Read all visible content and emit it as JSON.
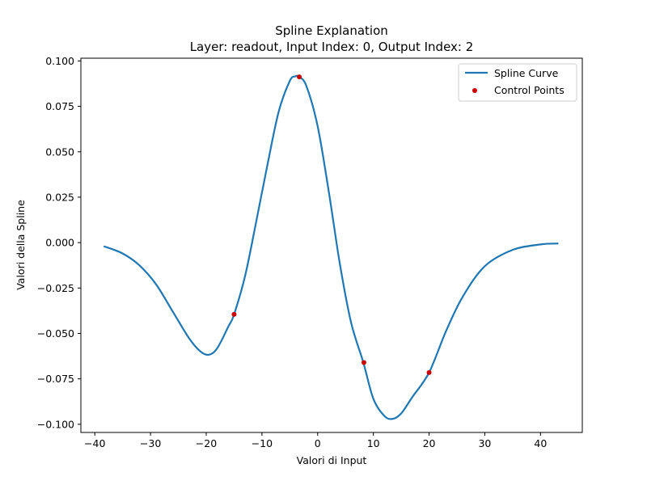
{
  "chart_data": {
    "type": "line",
    "title": "Spline Explanation",
    "subtitle": "Layer: readout, Input Index: 0, Output Index: 2",
    "xlabel": "Valori di Input",
    "ylabel": "Valori della Spline",
    "xlim": [
      -42.5,
      47.5
    ],
    "ylim": [
      -0.1045,
      0.1015
    ],
    "xticks": [
      -40,
      -30,
      -20,
      -10,
      0,
      10,
      20,
      30,
      40
    ],
    "xtick_labels": [
      "−40",
      "−30",
      "−20",
      "−10",
      "0",
      "10",
      "20",
      "30",
      "40"
    ],
    "yticks": [
      -0.1,
      -0.075,
      -0.05,
      -0.025,
      0.0,
      0.025,
      0.05,
      0.075,
      0.1
    ],
    "ytick_labels": [
      "−0.100",
      "−0.075",
      "−0.050",
      "−0.025",
      "0.000",
      "0.025",
      "0.050",
      "0.075",
      "0.100"
    ],
    "grid": false,
    "legend_position": "top-right",
    "series": [
      {
        "name": "Spline Curve",
        "kind": "line",
        "color": "#1f77b4",
        "x": [
          -38.4,
          -35,
          -32,
          -29,
          -26,
          -23,
          -21,
          -19.5,
          -18,
          -16,
          -15,
          -13,
          -11,
          -9,
          -7,
          -5,
          -4,
          -3.3,
          -2,
          0,
          2,
          4,
          6,
          8.2,
          10,
          12,
          13.5,
          15,
          17,
          20,
          23,
          26,
          30,
          35,
          40,
          43.2
        ],
        "y": [
          -0.002,
          -0.006,
          -0.0125,
          -0.023,
          -0.038,
          -0.053,
          -0.06,
          -0.0617,
          -0.058,
          -0.046,
          -0.0395,
          -0.018,
          0.012,
          0.043,
          0.072,
          0.089,
          0.0915,
          0.0912,
          0.086,
          0.064,
          0.028,
          -0.012,
          -0.044,
          -0.066,
          -0.086,
          -0.0955,
          -0.097,
          -0.094,
          -0.085,
          -0.0715,
          -0.049,
          -0.03,
          -0.013,
          -0.004,
          -0.001,
          -0.0005
        ]
      },
      {
        "name": "Control Points",
        "kind": "scatter",
        "color": "#cc0000",
        "x": [
          -15,
          -3.3,
          8.3,
          20
        ],
        "y": [
          -0.0395,
          0.0912,
          -0.066,
          -0.0715
        ]
      }
    ]
  }
}
